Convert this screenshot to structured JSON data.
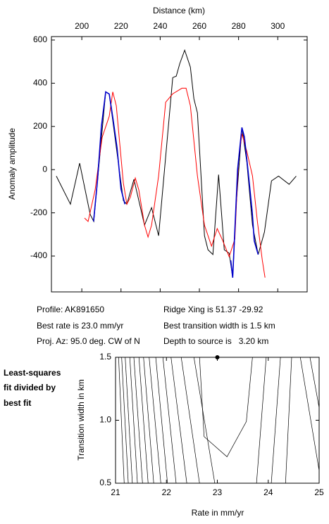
{
  "chart_data": [
    {
      "type": "line",
      "xlabel": "Distance (km)",
      "ylabel": "Anomaly amplitude",
      "xaxis_position": "top",
      "xlim": [
        184.5,
        315
      ],
      "ylim": [
        -566,
        616
      ],
      "xticks": [
        200,
        220,
        240,
        260,
        280,
        300
      ],
      "yticks": [
        -400,
        -200,
        0,
        200,
        400,
        600
      ],
      "series": [
        {
          "color": "#000000",
          "x": [
            187,
            194.2,
            198.9,
            204.3,
            206.1,
            212.2,
            214,
            221.2,
            223,
            226.6,
            232,
            235.6,
            239.2,
            246.4,
            248.2,
            250,
            252.5,
            255.4,
            257.2,
            259,
            262.6,
            264.4,
            266.9,
            269.8,
            272.7,
            275.2,
            277,
            278.8,
            281.7,
            284.2,
            287.1,
            290,
            293.2,
            296.8,
            300.4,
            305.8,
            309.4
          ],
          "values": [
            -30,
            -160,
            30,
            -208,
            -240,
            360,
            350,
            -143,
            -160,
            -45,
            -257,
            -176,
            -306,
            426,
            433,
            491,
            553,
            475,
            328,
            263,
            -306,
            -371,
            -393,
            -23,
            -371,
            -387,
            -500,
            -160,
            195,
            36,
            -257,
            -393,
            -289,
            -52,
            -30,
            -68,
            -30
          ]
        },
        {
          "color": "#ff0000",
          "x": [
            201.4,
            203.2,
            206.8,
            210.4,
            214,
            215.8,
            217.6,
            221.2,
            223,
            224.8,
            227.3,
            229.1,
            232,
            233.8,
            235.6,
            239.2,
            242.8,
            246.4,
            251.1,
            253.2,
            255.4,
            259,
            262.6,
            266.2,
            269.1,
            271.6,
            275.2,
            278.1,
            279.9,
            281.7,
            284.2,
            287.1,
            289.6,
            292.1,
            293.5
          ],
          "values": [
            -224,
            -240,
            -94,
            150,
            247,
            360,
            296,
            -62,
            -160,
            -127,
            -39,
            -94,
            -257,
            -312,
            -257,
            -29,
            312,
            351,
            377,
            377,
            296,
            -29,
            -257,
            -354,
            -273,
            -322,
            -403,
            -322,
            36,
            166,
            85,
            -29,
            -240,
            -419,
            -500
          ]
        },
        {
          "color": "#0000cc",
          "x": [
            206,
            208,
            210,
            212.2,
            214,
            216,
            218,
            220,
            222,
            null,
            276,
            277,
            278,
            279.5,
            281.7,
            283,
            285,
            287,
            288,
            290
          ],
          "values": [
            -240,
            -50,
            200,
            360,
            350,
            230,
            100,
            -90,
            -160,
            null,
            -420,
            -500,
            -300,
            0,
            195,
            150,
            -20,
            -200,
            -330,
            -393
          ]
        }
      ]
    },
    {
      "type": "contour",
      "xlabel": "Rate in mm/yr",
      "ylabel": "Transition width in km",
      "xlim": [
        21,
        25
      ],
      "ylim": [
        0.5,
        1.5
      ],
      "xticks": [
        21,
        22,
        23,
        24,
        25
      ],
      "yticks": [
        0.5,
        {
          "value": 1,
          "label": "1.0"
        },
        1.5
      ],
      "color": "#000000",
      "contours": [
        {
          "x": [
            21.06,
            21.17
          ],
          "y": [
            1.5,
            0.5
          ]
        },
        {
          "x": [
            21.12,
            21.25
          ],
          "y": [
            1.5,
            0.5
          ]
        },
        {
          "x": [
            21.19,
            21.33
          ],
          "y": [
            1.5,
            0.5
          ]
        },
        {
          "x": [
            21.28,
            21.43
          ],
          "y": [
            1.5,
            0.5
          ]
        },
        {
          "x": [
            21.36,
            21.53
          ],
          "y": [
            1.5,
            0.5
          ]
        },
        {
          "x": [
            21.46,
            21.64
          ],
          "y": [
            1.5,
            0.5
          ]
        },
        {
          "x": [
            21.55,
            21.75
          ],
          "y": [
            1.5,
            0.5
          ]
        },
        {
          "x": [
            21.66,
            21.89
          ],
          "y": [
            1.5,
            0.5
          ]
        },
        {
          "x": [
            21.79,
            22.02
          ],
          "y": [
            1.5,
            0.5
          ]
        },
        {
          "x": [
            21.93,
            22.19
          ],
          "y": [
            1.5,
            0.5
          ]
        },
        {
          "x": [
            22.09,
            22.4
          ],
          "y": [
            1.5,
            0.5
          ]
        },
        {
          "x": [
            22.29,
            22.65
          ],
          "y": [
            1.5,
            0.5
          ]
        },
        {
          "x": [
            22.54,
            22.95
          ],
          "y": [
            1.5,
            0.5
          ]
        },
        {
          "x": [
            22.65,
            22.74,
            23.19,
            23.57,
            23.69
          ],
          "y": [
            1.5,
            0.87,
            0.71,
            0.99,
            1.5
          ]
        },
        {
          "x": [
            23.96,
            23.77
          ],
          "y": [
            1.5,
            0.5
          ]
        },
        {
          "x": [
            24.24,
            24.06
          ],
          "y": [
            1.5,
            0.5
          ]
        },
        {
          "x": [
            24.46,
            24.34
          ],
          "y": [
            1.5,
            0.5
          ]
        },
        {
          "x": [
            24.63,
            25
          ],
          "y": [
            1.5,
            0.6
          ]
        },
        {
          "x": [
            24.82,
            25
          ],
          "y": [
            1.5,
            1.1
          ]
        }
      ],
      "best": {
        "x": 23.0,
        "y": 1.5
      }
    }
  ],
  "profile_info": {
    "left": [
      "Profile: AK891650",
      "Best rate is 23.0 mm/yr",
      "Proj. Az: 95.0 deg. CW of N"
    ],
    "right": [
      "Ridge Xing is 51.37 -29.92",
      "Best transition width is 1.5 km",
      "Depth to source is   3.20 km"
    ]
  },
  "note": [
    "Least-squares",
    "fit divided by",
    "best fit"
  ]
}
